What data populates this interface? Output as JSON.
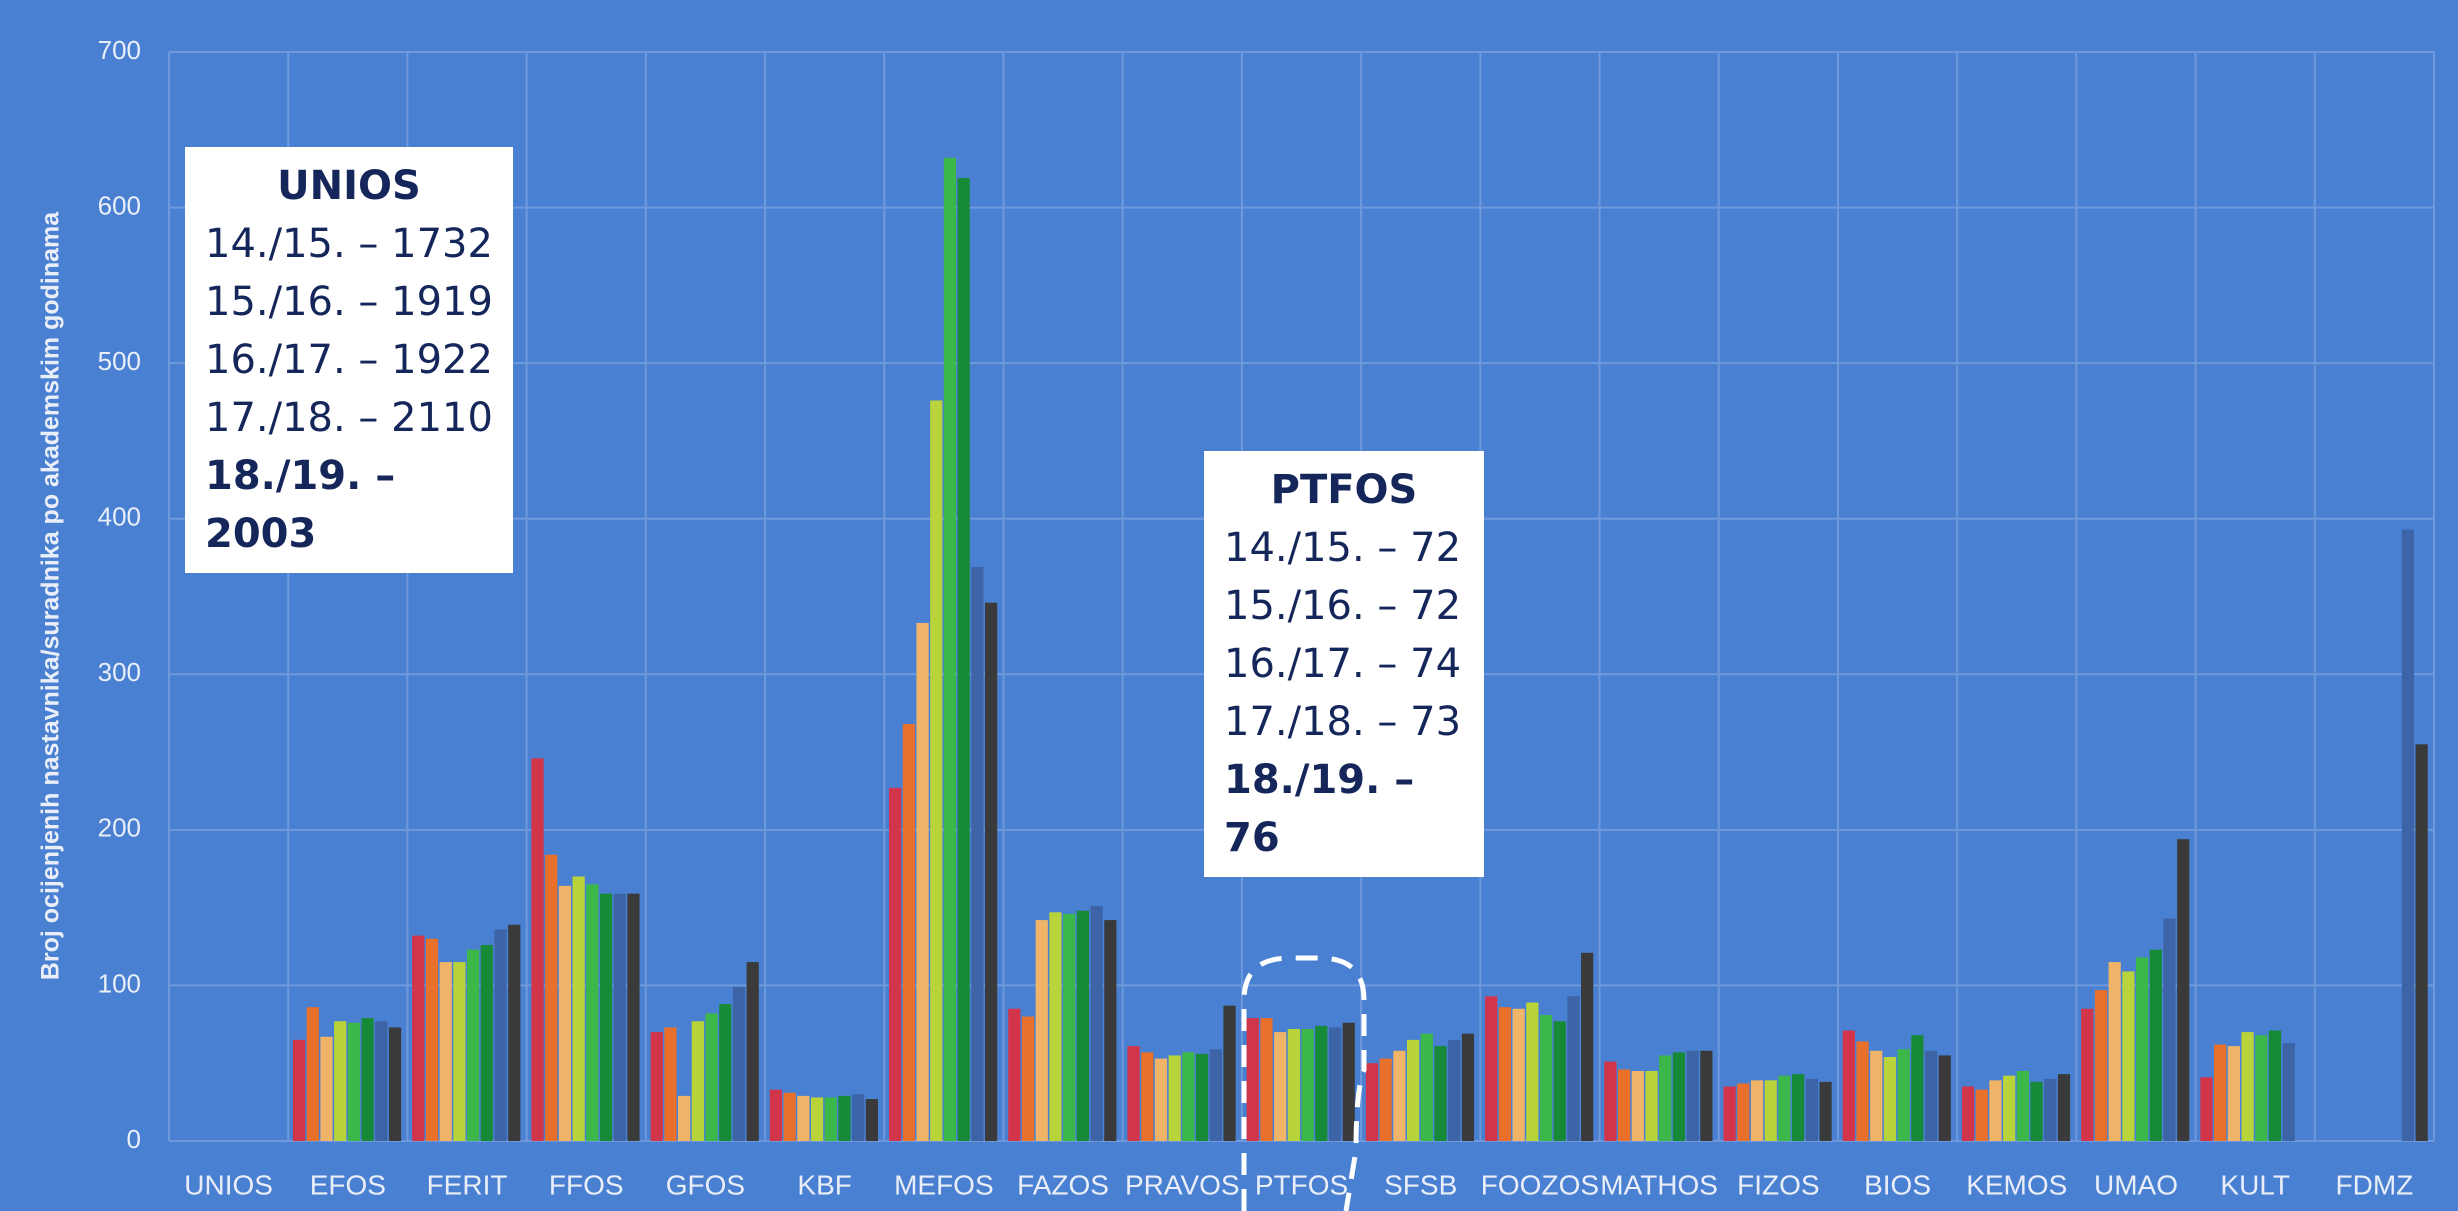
{
  "chart_data": {
    "type": "bar",
    "y_label": "Broj ocijenjenih nastavnika/suradnika po akademskim godinama",
    "categories": [
      "UNIOS",
      "EFOS",
      "FERIT",
      "FFOS",
      "GFOS",
      "KBF",
      "MEFOS",
      "FAZOS",
      "PRAVOS",
      "PTFOS",
      "SFSB",
      "FOOZOS",
      "MATHOS",
      "FIZOS",
      "BIOS",
      "KEMOS",
      "UMAO",
      "KULT",
      "FDMZ"
    ],
    "series": [
      {
        "color": "#d2344a",
        "values": [
          null,
          65,
          132,
          246,
          70,
          33,
          227,
          85,
          61,
          79,
          50,
          93,
          51,
          35,
          71,
          35,
          85,
          41,
          null
        ]
      },
      {
        "color": "#e8702a",
        "values": [
          null,
          86,
          130,
          184,
          73,
          31,
          268,
          80,
          57,
          79,
          53,
          86,
          46,
          37,
          64,
          33,
          97,
          62,
          null
        ]
      },
      {
        "color": "#efb468",
        "values": [
          null,
          67,
          115,
          164,
          29,
          29,
          333,
          142,
          53,
          70,
          58,
          85,
          45,
          39,
          58,
          39,
          115,
          61,
          null
        ]
      },
      {
        "color": "#b8d43a",
        "values": [
          null,
          77,
          115,
          170,
          77,
          28,
          476,
          147,
          55,
          72,
          65,
          89,
          45,
          39,
          54,
          42,
          109,
          70,
          null
        ]
      },
      {
        "color": "#3cb84a",
        "values": [
          null,
          76,
          123,
          165,
          82,
          28,
          632,
          146,
          57,
          72,
          69,
          81,
          55,
          42,
          59,
          45,
          118,
          68,
          null
        ]
      },
      {
        "color": "#178a38",
        "values": [
          null,
          79,
          126,
          159,
          88,
          29,
          619,
          148,
          56,
          74,
          61,
          77,
          57,
          43,
          68,
          38,
          123,
          71,
          null
        ]
      },
      {
        "color": "#3d64a6",
        "values": [
          null,
          77,
          136,
          159,
          99,
          30,
          369,
          151,
          59,
          73,
          65,
          93,
          58,
          40,
          58,
          40,
          143,
          63,
          393
        ]
      },
      {
        "color": "#3a3a3a",
        "values": [
          null,
          73,
          139,
          159,
          115,
          27,
          346,
          142,
          87,
          76,
          69,
          121,
          58,
          38,
          55,
          43,
          194,
          null,
          255
        ]
      }
    ],
    "ylim": [
      0,
      700
    ],
    "yticks": [
      0,
      100,
      200,
      300,
      400,
      500,
      600,
      700
    ],
    "grid": true,
    "annotations": [
      {
        "title": "UNIOS",
        "lines": [
          "14./15. – 1732",
          "15./16. – 1919",
          "16./17. – 1922",
          "17./18. – 2110",
          "18./19. – 2003"
        ]
      },
      {
        "title": "PTFOS",
        "lines": [
          "14./15. – 72",
          "15./16. – 72",
          "16./17. – 74",
          "17./18. – 73",
          "18./19. – 76"
        ]
      }
    ]
  }
}
